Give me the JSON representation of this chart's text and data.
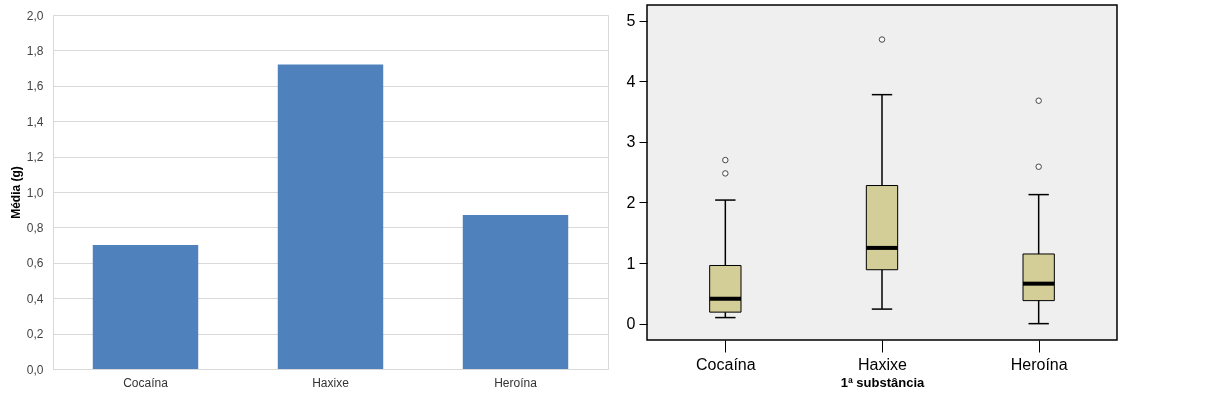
{
  "chart_data": [
    {
      "type": "bar",
      "ylabel": "Média (g)",
      "categories": [
        "Cocaína",
        "Haxixe",
        "Heroína"
      ],
      "values": [
        0.7,
        1.72,
        0.87
      ],
      "color": "#4f81bd",
      "ylim": [
        0,
        2
      ],
      "yticks": [
        {
          "value": 0,
          "label": "0,0"
        },
        {
          "value": 0.2,
          "label": "0,2"
        },
        {
          "value": 0.4,
          "label": "0,4"
        },
        {
          "value": 0.6,
          "label": "0,6"
        },
        {
          "value": 0.8,
          "label": "0,8"
        },
        {
          "value": 1,
          "label": "1,0"
        },
        {
          "value": 1.2,
          "label": "1,2"
        },
        {
          "value": 1.4,
          "label": "1,4"
        },
        {
          "value": 1.6,
          "label": "1,6"
        },
        {
          "value": 1.8,
          "label": "1,8"
        },
        {
          "value": 2,
          "label": "2,0"
        }
      ],
      "grid": "y"
    },
    {
      "type": "box",
      "xlabel": "1ª substância",
      "categories": [
        "Cocaína",
        "Haxixe",
        "Heroína"
      ],
      "color": "#d3cd97",
      "ylim": [
        -0.27,
        5.26
      ],
      "yticks": [
        0,
        1,
        2,
        3,
        4,
        5
      ],
      "grid": false,
      "boxes": [
        {
          "low": 0.1,
          "q1": 0.19,
          "median": 0.41,
          "q3": 0.96,
          "high": 2.04,
          "outliers": [
            2.48,
            2.7
          ]
        },
        {
          "low": 0.24,
          "q1": 0.89,
          "median": 1.25,
          "q3": 2.28,
          "high": 3.78,
          "outliers": [
            4.69
          ]
        },
        {
          "low": 0,
          "q1": 0.38,
          "median": 0.66,
          "q3": 1.15,
          "high": 2.13,
          "outliers": [
            2.59,
            3.68
          ]
        }
      ]
    }
  ]
}
